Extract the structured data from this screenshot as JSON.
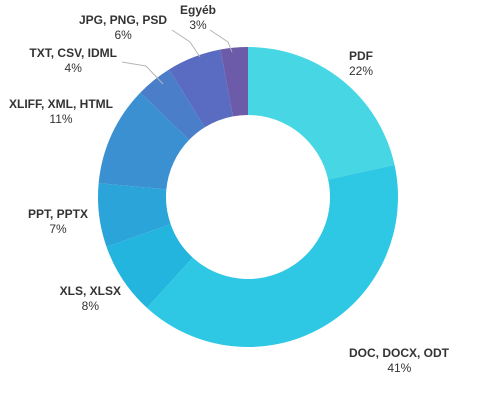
{
  "chart_data": {
    "type": "pie",
    "donut": true,
    "categories": [
      "PDF",
      "DOC, DOCX, ODT",
      "XLS, XLSX",
      "PPT, PPTX",
      "XLIFF, XML, HTML",
      "TXT, CSV, IDML",
      "JPG, PNG, PSD",
      "Egyéb"
    ],
    "values": [
      22,
      41,
      8,
      7,
      11,
      4,
      6,
      3
    ],
    "value_labels": [
      "22%",
      "41%",
      "8%",
      "7%",
      "11%",
      "4%",
      "6%",
      "3%"
    ],
    "colors": [
      "#46d6e4",
      "#2ec8e4",
      "#23b5dd",
      "#2ba4da",
      "#3a90d1",
      "#4a7ec9",
      "#5a6cc1",
      "#6b5ba8"
    ],
    "legend": "none"
  }
}
